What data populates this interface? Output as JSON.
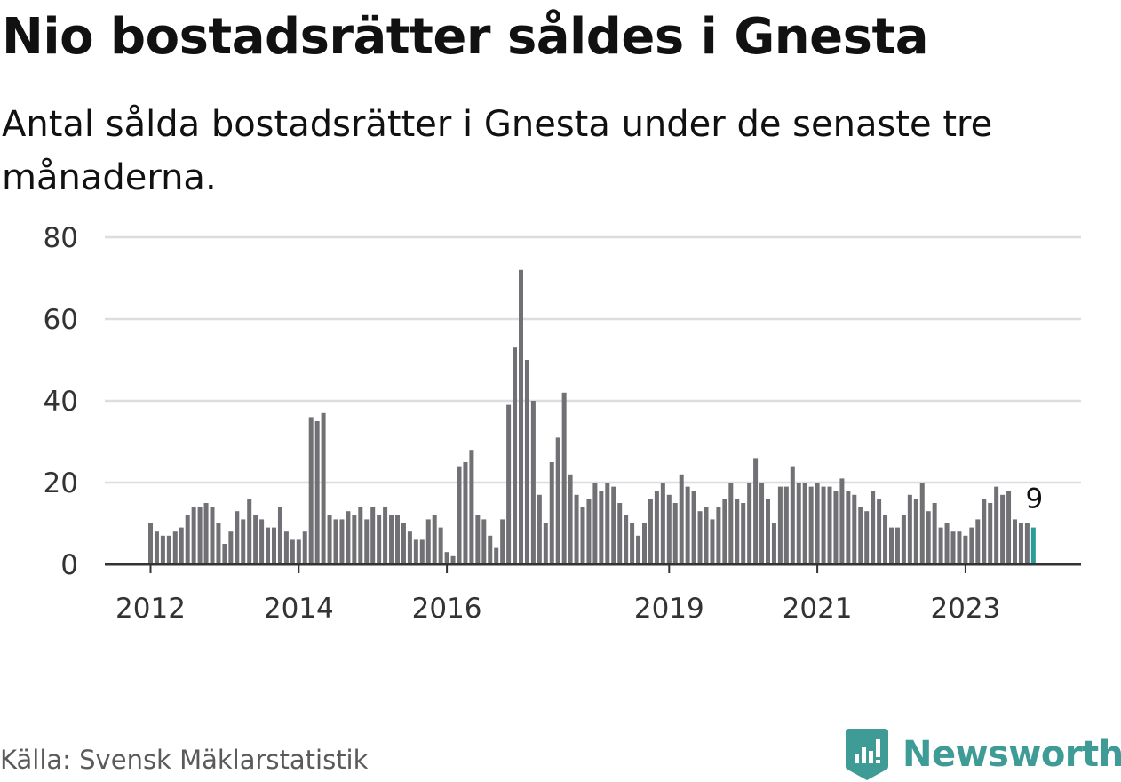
{
  "title": "Nio bostadsrätter såldes i Gnesta",
  "subtitle": "Antal sålda bostadsrätter i Gnesta under de senaste tre månaderna.",
  "source": "Källa: Svensk Mäklarstatistik",
  "brand": {
    "name": "Newsworthy",
    "logo_icon": "newsworthy-logo-icon"
  },
  "colors": {
    "bar": "#717075",
    "highlight": "#2a9d96",
    "grid": "#dddddd",
    "axis": "#333333",
    "text": "#111111",
    "tick_text": "#333333"
  },
  "chart_data": {
    "type": "bar",
    "title": "Nio bostadsrätter såldes i Gnesta",
    "xlabel": "",
    "ylabel": "",
    "ylim": [
      0,
      80
    ],
    "yticks": [
      0,
      20,
      40,
      60,
      80
    ],
    "grid": true,
    "legend": "none",
    "start": "2012-01",
    "period": "month",
    "values": [
      10,
      8,
      7,
      7,
      8,
      9,
      12,
      14,
      14,
      15,
      14,
      10,
      5,
      8,
      13,
      11,
      16,
      12,
      11,
      9,
      9,
      14,
      8,
      6,
      6,
      8,
      36,
      35,
      37,
      12,
      11,
      11,
      13,
      12,
      14,
      11,
      14,
      12,
      14,
      12,
      12,
      10,
      8,
      6,
      6,
      11,
      12,
      9,
      3,
      2,
      24,
      25,
      28,
      12,
      11,
      7,
      4,
      11,
      39,
      53,
      72,
      50,
      40,
      17,
      10,
      25,
      31,
      42,
      22,
      17,
      14,
      16,
      20,
      18,
      20,
      19,
      15,
      12,
      10,
      7,
      10,
      16,
      18,
      20,
      17,
      15,
      22,
      19,
      18,
      13,
      14,
      11,
      14,
      16,
      20,
      16,
      15,
      20,
      26,
      20,
      16,
      10,
      19,
      19,
      24,
      20,
      20,
      19,
      20,
      19,
      19,
      18,
      21,
      18,
      17,
      14,
      13,
      18,
      16,
      12,
      9,
      9,
      12,
      17,
      16,
      20,
      13,
      15,
      9,
      10,
      8,
      8,
      7,
      9,
      11,
      16,
      15,
      19,
      17,
      18,
      11,
      10,
      10,
      9
    ],
    "x_ticks": [
      {
        "label": "2012",
        "index": 0
      },
      {
        "label": "2014",
        "index": 24
      },
      {
        "label": "2016",
        "index": 48
      },
      {
        "label": "2019",
        "index": 84
      },
      {
        "label": "2021",
        "index": 108
      },
      {
        "label": "2023",
        "index": 132
      }
    ],
    "highlight_index": 143,
    "data_label": {
      "index": 143,
      "text": "9"
    }
  }
}
